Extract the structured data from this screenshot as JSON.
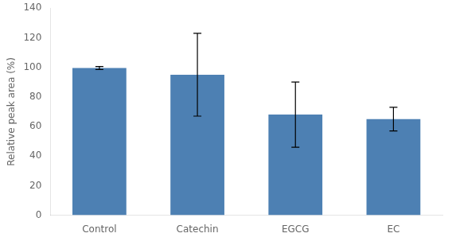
{
  "chart_data": {
    "type": "bar",
    "categories": [
      "Control",
      "Catechin",
      "EGCG",
      "EC"
    ],
    "values": [
      99.5,
      95.0,
      68.0,
      65.0
    ],
    "errors": [
      1.0,
      28.0,
      22.0,
      8.0
    ],
    "color": "#4d80b3",
    "ylabel": "Relative peak area (%)",
    "ylim": [
      0,
      140
    ],
    "yticks": [
      0,
      20,
      40,
      60,
      80,
      100,
      120,
      140
    ],
    "grid": false
  }
}
